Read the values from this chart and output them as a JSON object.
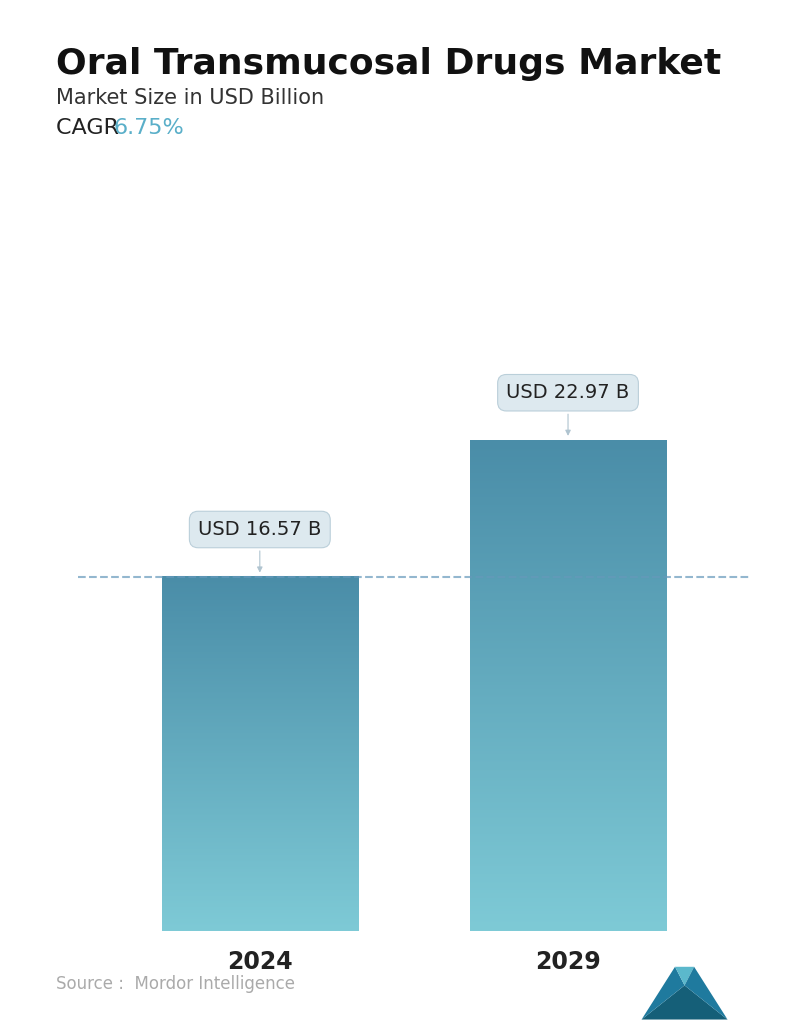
{
  "title": "Oral Transmucosal Drugs Market",
  "subtitle": "Market Size in USD Billion",
  "cagr_label": "CAGR ",
  "cagr_value": "6.75%",
  "cagr_color": "#5aafc9",
  "categories": [
    "2024",
    "2029"
  ],
  "values": [
    16.57,
    22.97
  ],
  "bar_labels": [
    "USD 16.57 B",
    "USD 22.97 B"
  ],
  "bar_top_color": "#4a8da8",
  "bar_bottom_color": "#7ecad6",
  "dashed_line_color": "#6699bb",
  "dashed_line_value": 16.57,
  "source_text": "Source :  Mordor Intelligence",
  "source_color": "#aaaaaa",
  "background_color": "#ffffff",
  "title_fontsize": 26,
  "subtitle_fontsize": 15,
  "cagr_fontsize": 16,
  "bar_label_fontsize": 14,
  "xlabel_fontsize": 17,
  "source_fontsize": 12,
  "ylim": [
    0,
    30
  ],
  "bar_width": 0.28
}
